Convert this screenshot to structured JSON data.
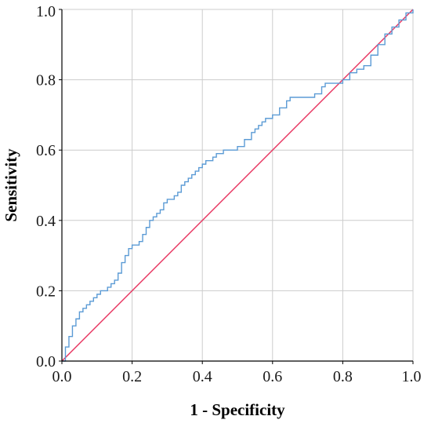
{
  "chart_data": {
    "type": "line",
    "title": "",
    "xlabel": "1 - Specificity",
    "ylabel": "Sensitivity",
    "xlim": [
      0.0,
      1.0
    ],
    "ylim": [
      0.0,
      1.0
    ],
    "xticks": [
      "0.0",
      "0.2",
      "0.4",
      "0.6",
      "0.8",
      "1.0"
    ],
    "yticks": [
      "0.0",
      "0.2",
      "0.4",
      "0.6",
      "0.8",
      "1.0"
    ],
    "grid": true,
    "legend": "none",
    "colors": {
      "roc": "#5b9bd5",
      "reference": "#e8335f",
      "grid": "#cccccc",
      "axis": "#000000"
    },
    "series": [
      {
        "x": [
          0.0,
          0.01,
          0.02,
          0.03,
          0.04,
          0.05,
          0.06,
          0.07,
          0.08,
          0.09,
          0.1,
          0.11,
          0.12,
          0.13,
          0.14,
          0.15,
          0.16,
          0.17,
          0.18,
          0.19,
          0.2,
          0.21,
          0.22,
          0.23,
          0.24,
          0.25,
          0.26,
          0.27,
          0.28,
          0.29,
          0.3,
          0.31,
          0.32,
          0.33,
          0.34,
          0.35,
          0.36,
          0.37,
          0.38,
          0.39,
          0.4,
          0.41,
          0.42,
          0.43,
          0.44,
          0.45,
          0.46,
          0.47,
          0.48,
          0.49,
          0.5,
          0.52,
          0.54,
          0.55,
          0.56,
          0.57,
          0.58,
          0.6,
          0.62,
          0.64,
          0.65,
          0.66,
          0.68,
          0.7,
          0.72,
          0.74,
          0.75,
          0.76,
          0.78,
          0.8,
          0.82,
          0.84,
          0.85,
          0.86,
          0.88,
          0.9,
          0.92,
          0.94,
          0.96,
          0.98,
          1.0
        ],
        "y": [
          0.0,
          0.04,
          0.07,
          0.1,
          0.12,
          0.14,
          0.15,
          0.16,
          0.17,
          0.18,
          0.19,
          0.2,
          0.2,
          0.21,
          0.22,
          0.23,
          0.25,
          0.28,
          0.3,
          0.32,
          0.33,
          0.33,
          0.34,
          0.36,
          0.38,
          0.4,
          0.41,
          0.42,
          0.43,
          0.45,
          0.46,
          0.46,
          0.47,
          0.48,
          0.5,
          0.51,
          0.52,
          0.53,
          0.54,
          0.55,
          0.56,
          0.57,
          0.57,
          0.58,
          0.59,
          0.59,
          0.6,
          0.6,
          0.6,
          0.6,
          0.61,
          0.63,
          0.65,
          0.66,
          0.67,
          0.68,
          0.69,
          0.7,
          0.72,
          0.74,
          0.75,
          0.75,
          0.75,
          0.75,
          0.76,
          0.78,
          0.79,
          0.79,
          0.79,
          0.8,
          0.82,
          0.83,
          0.83,
          0.84,
          0.87,
          0.9,
          0.93,
          0.95,
          0.97,
          0.99,
          1.0
        ]
      },
      {
        "x": [
          0.0,
          1.0
        ],
        "y": [
          0.0,
          1.0
        ]
      }
    ]
  }
}
